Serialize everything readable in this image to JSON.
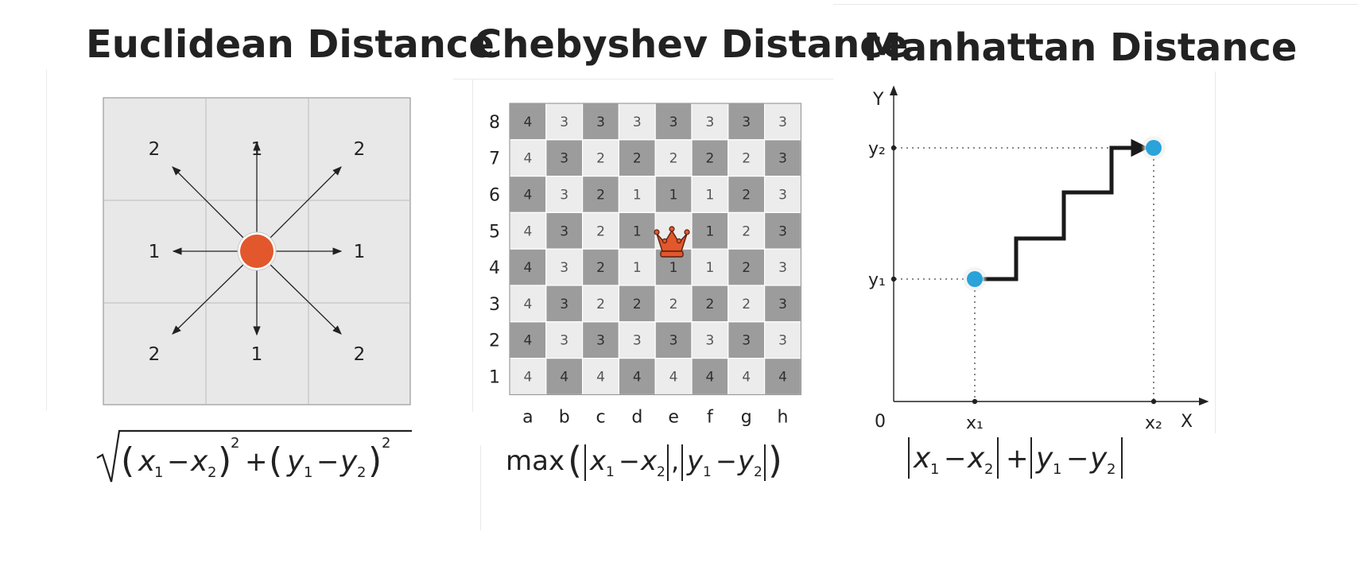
{
  "euclidean": {
    "title": "Euclidean Distance",
    "grid_labels": [
      "2",
      "1",
      "2",
      "1",
      "1",
      "2",
      "1",
      "2"
    ],
    "formula": {
      "x1": "x",
      "x1_sub": "1",
      "minus": "−",
      "x2": "x",
      "x2_sub": "2",
      "exp": "2",
      "plus": "+",
      "y1": "y",
      "y1_sub": "1",
      "y2": "y",
      "y2_sub": "2"
    },
    "center_color": "#e2572b"
  },
  "chebyshev": {
    "title": "Chebyshev Distance",
    "rank_labels": [
      "8",
      "7",
      "6",
      "5",
      "4",
      "3",
      "2",
      "1"
    ],
    "file_labels": [
      "a",
      "b",
      "c",
      "d",
      "e",
      "f",
      "g",
      "h"
    ],
    "board": [
      [
        "4",
        "3",
        "3",
        "3",
        "3",
        "3",
        "3",
        "3"
      ],
      [
        "4",
        "3",
        "2",
        "2",
        "2",
        "2",
        "2",
        "3"
      ],
      [
        "4",
        "3",
        "2",
        "1",
        "1",
        "1",
        "2",
        "3"
      ],
      [
        "4",
        "3",
        "2",
        "1",
        "",
        "1",
        "2",
        "3"
      ],
      [
        "4",
        "3",
        "2",
        "1",
        "1",
        "1",
        "2",
        "3"
      ],
      [
        "4",
        "3",
        "2",
        "2",
        "2",
        "2",
        "2",
        "3"
      ],
      [
        "4",
        "3",
        "3",
        "3",
        "3",
        "3",
        "3",
        "3"
      ],
      [
        "4",
        "4",
        "4",
        "4",
        "4",
        "4",
        "4",
        "4"
      ]
    ],
    "queen_icon": "queen-crown-icon",
    "queen_color": "#e2572b",
    "formula": {
      "max": "max",
      "x1": "x",
      "x1_sub": "1",
      "minus": "−",
      "x2": "x",
      "x2_sub": "2",
      "comma": ",",
      "y1": "y",
      "y1_sub": "1",
      "y2": "y",
      "y2_sub": "2"
    }
  },
  "manhattan": {
    "title": "Manhattan Distance",
    "axis": {
      "y_label": "Y",
      "x_label": "X",
      "origin": "0"
    },
    "ticks": {
      "x1": "x₁",
      "x2": "x₂",
      "y1": "y₁",
      "y2": "y₂"
    },
    "point_color": "#29a3d9",
    "formula": {
      "x1": "x",
      "x1_sub": "1",
      "minus": "−",
      "x2": "x",
      "x2_sub": "2",
      "plus": "+",
      "y1": "y",
      "y1_sub": "1",
      "y2": "y",
      "y2_sub": "2"
    }
  }
}
